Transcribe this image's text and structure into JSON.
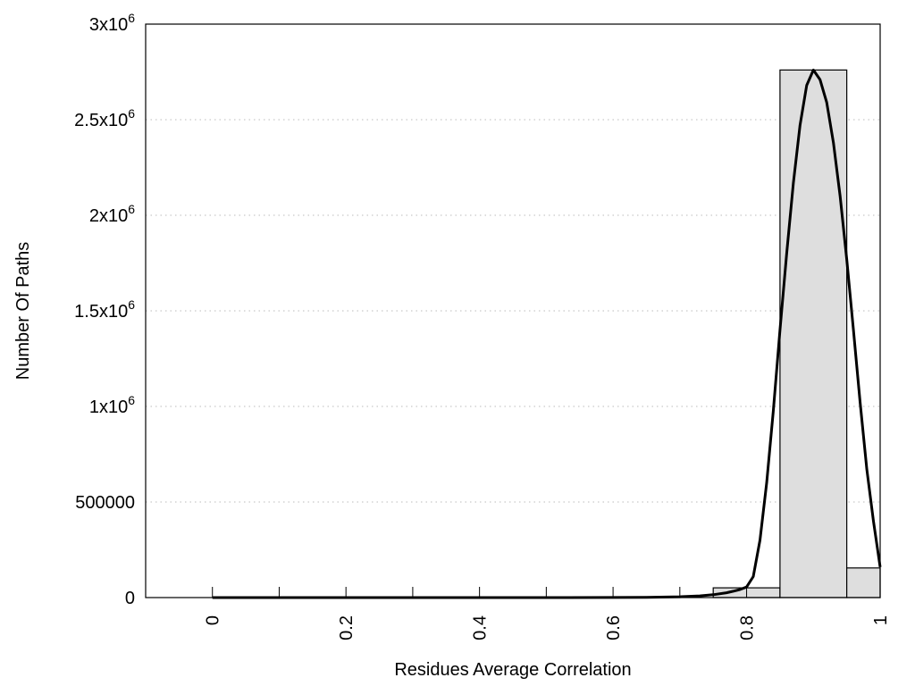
{
  "chart_data": {
    "type": "bar",
    "title": "",
    "xlabel": "Residues Average Correlation",
    "ylabel": "Number Of Paths",
    "xlim": [
      -0.1,
      1.0
    ],
    "ylim": [
      0,
      3000000
    ],
    "grid": "horizontal dotted",
    "legend": "none",
    "x_ticks": [
      {
        "value": 0,
        "label": "0"
      },
      {
        "value": 0.2,
        "label": "0.2"
      },
      {
        "value": 0.4,
        "label": "0.4"
      },
      {
        "value": 0.6,
        "label": "0.6"
      },
      {
        "value": 0.8,
        "label": "0.8"
      },
      {
        "value": 1.0,
        "label": "1"
      }
    ],
    "x_minor_ticks": [
      0.1,
      0.3,
      0.5,
      0.7
    ],
    "y_ticks": [
      {
        "value": 0,
        "label": "0"
      },
      {
        "value": 500000,
        "label": "500000"
      },
      {
        "value": 1000000,
        "label": "1x10",
        "sup": "6"
      },
      {
        "value": 1500000,
        "label": "1.5x10",
        "sup": "6"
      },
      {
        "value": 2000000,
        "label": "2x10",
        "sup": "6"
      },
      {
        "value": 2500000,
        "label": "2.5x10",
        "sup": "6"
      },
      {
        "value": 3000000,
        "label": "3x10",
        "sup": "6"
      }
    ],
    "bars": [
      {
        "x0": 0.75,
        "x1": 0.85,
        "value": 51000
      },
      {
        "x0": 0.85,
        "x1": 0.95,
        "value": 2760000
      },
      {
        "x0": 0.95,
        "x1": 1.0,
        "value": 155000
      }
    ],
    "bar_color": "#dedede",
    "curve": {
      "x": [
        0,
        0.1,
        0.2,
        0.3,
        0.4,
        0.5,
        0.6,
        0.65,
        0.7,
        0.73,
        0.75,
        0.77,
        0.78,
        0.79,
        0.8,
        0.81,
        0.82,
        0.83,
        0.84,
        0.85,
        0.86,
        0.87,
        0.88,
        0.89,
        0.9,
        0.91,
        0.92,
        0.93,
        0.94,
        0.95,
        0.96,
        0.97,
        0.98,
        0.99,
        1.0
      ],
      "y": [
        0,
        0,
        0,
        0,
        0,
        0,
        500,
        1500,
        4000,
        9000,
        15000,
        25000,
        33000,
        42000,
        55000,
        110000,
        300000,
        600000,
        975000,
        1400000,
        1800000,
        2170000,
        2470000,
        2680000,
        2760000,
        2710000,
        2590000,
        2380000,
        2100000,
        1770000,
        1400000,
        1020000,
        670000,
        400000,
        160000
      ],
      "color": "#000000"
    }
  }
}
